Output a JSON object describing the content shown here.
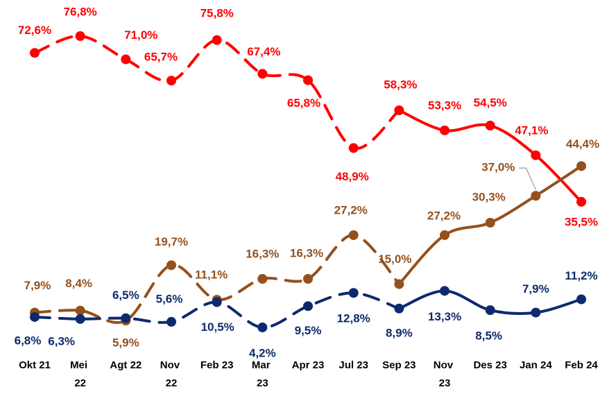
{
  "chart_data": {
    "type": "line",
    "categories": [
      "Okt 21",
      "Mei 22",
      "Agt 22",
      "Nov 22",
      "Feb 23",
      "Mar 23",
      "Apr 23",
      "Jul 23",
      "Sep 23",
      "Nov 23",
      "Des 23",
      "Jan 24",
      "Feb 24"
    ],
    "series": [
      {
        "color": "#ff0000",
        "values": [
          72.6,
          76.8,
          71.0,
          65.7,
          75.8,
          67.4,
          65.8,
          48.9,
          58.3,
          53.3,
          54.5,
          47.1,
          35.5
        ],
        "value_labels": [
          "72,6%",
          "76,8%",
          "71,0%",
          "65,7%",
          "75,8%",
          "67,4%",
          "65,8%",
          "48,9%",
          "58,3%",
          "53,3%",
          "54,5%",
          "47,1%",
          "35,5%"
        ]
      },
      {
        "color": "#95501c",
        "values": [
          7.9,
          8.4,
          5.9,
          19.7,
          11.1,
          16.3,
          16.3,
          27.2,
          15.0,
          27.2,
          30.3,
          37.0,
          44.4
        ],
        "value_labels": [
          "7,9%",
          "8,4%",
          "5,9%",
          "19,7%",
          "11,1%",
          "16,3%",
          "16,3%",
          "27,2%",
          "15,0%",
          "27,2%",
          "30,3%",
          "37,0%",
          "44,4%"
        ]
      },
      {
        "color": "#0e2a6e",
        "values": [
          6.8,
          6.3,
          6.5,
          5.6,
          10.5,
          4.2,
          9.5,
          12.8,
          8.9,
          13.3,
          8.5,
          7.9,
          11.2
        ],
        "value_labels": [
          "6,8%",
          "6,3%",
          "6,5%",
          "5,6%",
          "10,5%",
          "4,2%",
          "9,5%",
          "12,8%",
          "8,9%",
          "13,3%",
          "8,5%",
          "7,9%",
          "11,2%"
        ]
      }
    ]
  }
}
